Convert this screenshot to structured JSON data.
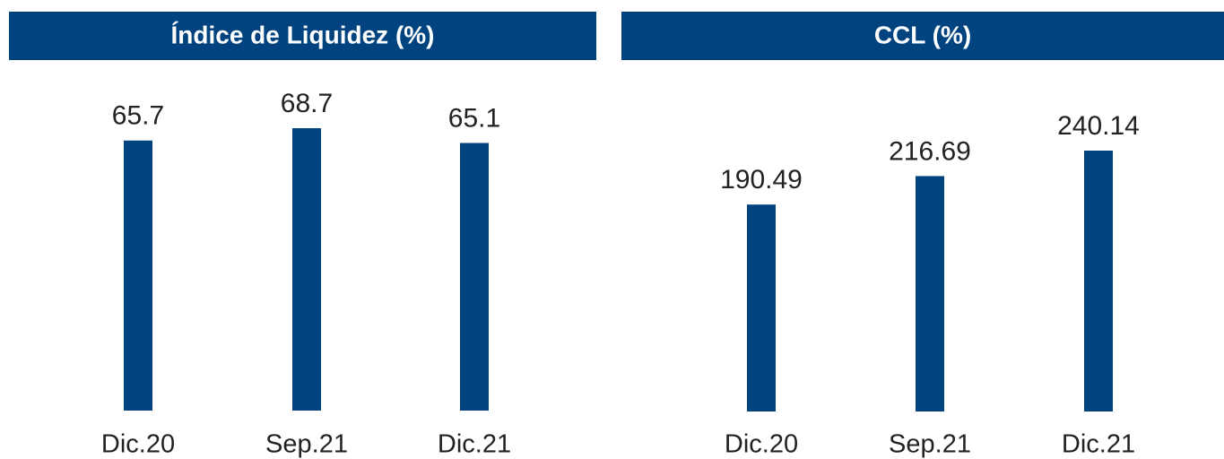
{
  "chart_data": [
    {
      "type": "bar",
      "title": "Índice de Liquidez (%)",
      "categories": [
        "Dic.20",
        "Sep.21",
        "Dic.21"
      ],
      "values": [
        65.7,
        68.7,
        65.1
      ],
      "color": "#00437f"
    },
    {
      "type": "bar",
      "title": "CCL (%)",
      "categories": [
        "Dic.20",
        "Sep.21",
        "Dic.21"
      ],
      "values": [
        190.49,
        216.69,
        240.14
      ],
      "color": "#00437f"
    }
  ]
}
